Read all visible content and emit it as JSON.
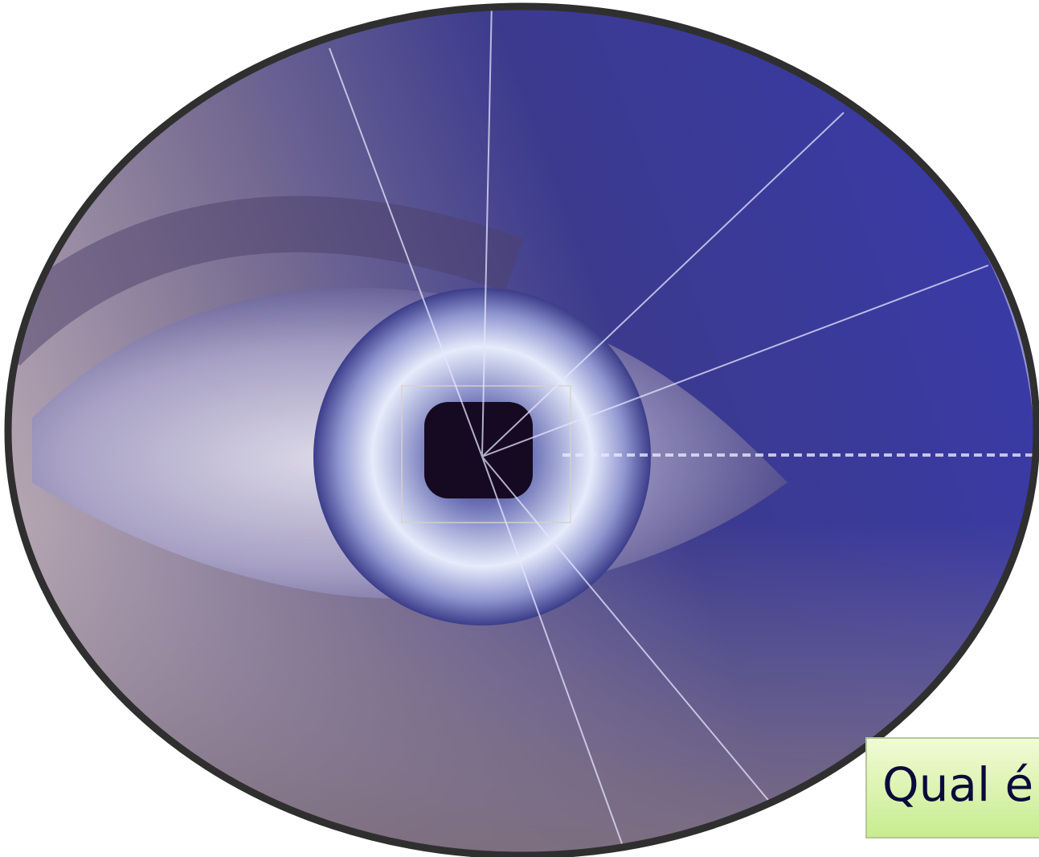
{
  "caption": "Qual é"
}
